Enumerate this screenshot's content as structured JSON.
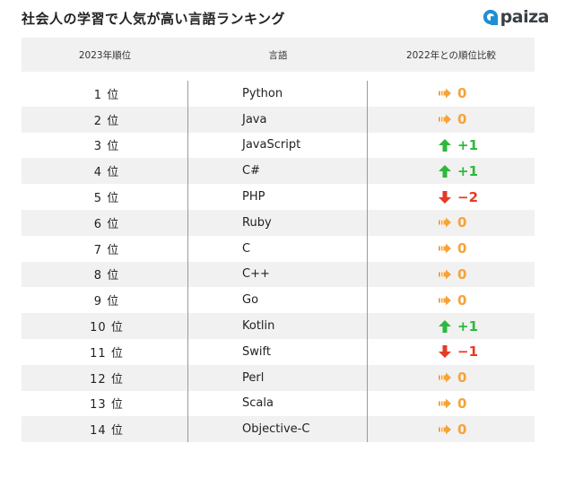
{
  "title": "社会人の学習で人気が高い言語ランキング",
  "logo": {
    "text": "paiza"
  },
  "colors": {
    "up": "#2db83d",
    "down": "#e63b24",
    "same": "#f5a33a",
    "header_bg": "#f1f1f1"
  },
  "headers": {
    "rank": "2023年順位",
    "language": "言語",
    "compare": "2022年との順位比較"
  },
  "rows": [
    {
      "rank": "1 位",
      "language": "Python",
      "trend": "same",
      "change": "0"
    },
    {
      "rank": "2 位",
      "language": "Java",
      "trend": "same",
      "change": "0"
    },
    {
      "rank": "3 位",
      "language": "JavaScript",
      "trend": "up",
      "change": "+1"
    },
    {
      "rank": "4 位",
      "language": "C#",
      "trend": "up",
      "change": "+1"
    },
    {
      "rank": "5 位",
      "language": "PHP",
      "trend": "down",
      "change": "−2"
    },
    {
      "rank": "6 位",
      "language": "Ruby",
      "trend": "same",
      "change": "0"
    },
    {
      "rank": "7 位",
      "language": "C",
      "trend": "same",
      "change": "0"
    },
    {
      "rank": "8 位",
      "language": "C++",
      "trend": "same",
      "change": "0"
    },
    {
      "rank": "9 位",
      "language": "Go",
      "trend": "same",
      "change": "0"
    },
    {
      "rank": "10 位",
      "language": "Kotlin",
      "trend": "up",
      "change": "+1"
    },
    {
      "rank": "11 位",
      "language": "Swift",
      "trend": "down",
      "change": "−1"
    },
    {
      "rank": "12 位",
      "language": "Perl",
      "trend": "same",
      "change": "0"
    },
    {
      "rank": "13 位",
      "language": "Scala",
      "trend": "same",
      "change": "0"
    },
    {
      "rank": "14 位",
      "language": "Objective-C",
      "trend": "same",
      "change": "0"
    }
  ]
}
